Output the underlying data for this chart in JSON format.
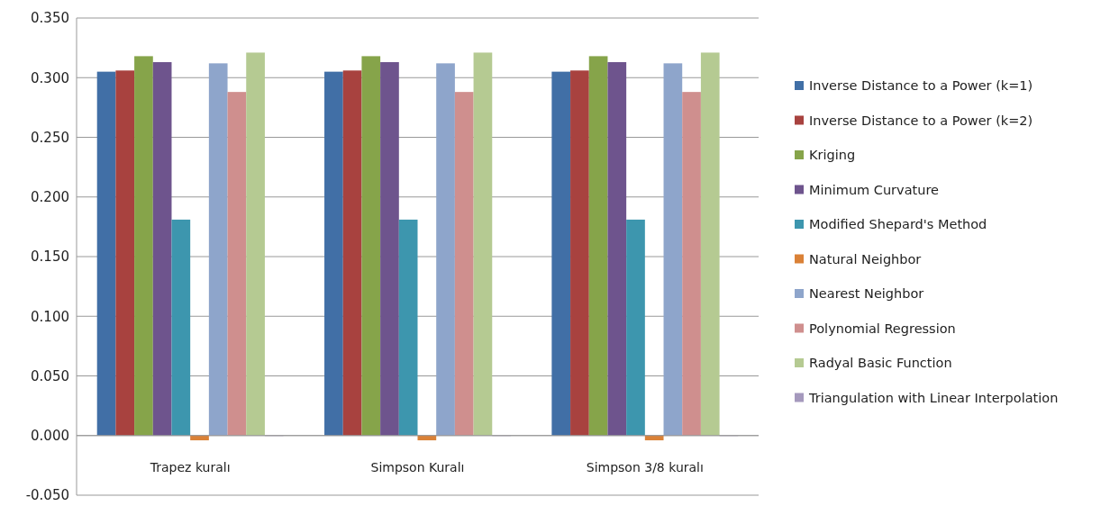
{
  "chart_data": {
    "type": "bar",
    "categories": [
      "Trapez kuralı",
      "Simpson Kuralı",
      "Simpson 3/8 kuralı"
    ],
    "series": [
      {
        "name": "Inverse Distance to a Power (k=1)",
        "color": "#416fa6",
        "values": [
          0.305,
          0.305,
          0.305
        ]
      },
      {
        "name": "Inverse Distance to a Power (k=2)",
        "color": "#a8423f",
        "values": [
          0.306,
          0.306,
          0.306
        ]
      },
      {
        "name": "Kriging",
        "color": "#86a44a",
        "values": [
          0.318,
          0.318,
          0.318
        ]
      },
      {
        "name": "Minimum Curvature",
        "color": "#6e548d",
        "values": [
          0.313,
          0.313,
          0.313
        ]
      },
      {
        "name": "Modified Shepard's Method",
        "color": "#3d96ae",
        "values": [
          0.181,
          0.181,
          0.181
        ]
      },
      {
        "name": "Natural Neighbor",
        "color": "#da8137",
        "values": [
          -0.004,
          -0.004,
          -0.004
        ]
      },
      {
        "name": "Nearest Neighbor",
        "color": "#8ea5cb",
        "values": [
          0.312,
          0.312,
          0.312
        ]
      },
      {
        "name": "Polynomial Regression",
        "color": "#cf8f8e",
        "values": [
          0.288,
          0.288,
          0.288
        ]
      },
      {
        "name": "Radyal Basic Function",
        "color": "#b5ca92",
        "values": [
          0.321,
          0.321,
          0.321
        ]
      },
      {
        "name": "Triangulation with Linear Interpolation",
        "color": "#a599bd",
        "values": [
          0,
          0,
          0
        ]
      }
    ],
    "ylim": [
      -0.05,
      0.35
    ],
    "yticks": [
      {
        "value": -0.05,
        "label": "-0.050"
      },
      {
        "value": 0,
        "label": "0.000"
      },
      {
        "value": 0.05,
        "label": "0.050"
      },
      {
        "value": 0.1,
        "label": "0.100"
      },
      {
        "value": 0.15,
        "label": "0.150"
      },
      {
        "value": 0.2,
        "label": "0.200"
      },
      {
        "value": 0.25,
        "label": "0.250"
      },
      {
        "value": 0.3,
        "label": "0.300"
      },
      {
        "value": 0.35,
        "label": "0.350"
      }
    ],
    "grid": "y",
    "legend": "right"
  }
}
